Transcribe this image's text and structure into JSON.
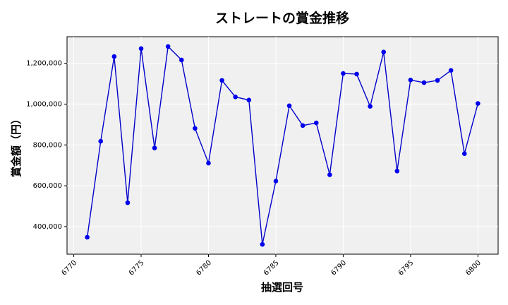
{
  "chart_data": {
    "type": "line",
    "title": "ストレートの賞金推移",
    "xlabel": "抽選回号",
    "ylabel": "賞金額（円）",
    "xlim": [
      6769.5,
      6801.5
    ],
    "ylim": [
      265000,
      1330000
    ],
    "x_ticks": [
      6770,
      6775,
      6780,
      6785,
      6790,
      6795,
      6800
    ],
    "x_tick_labels": [
      "6770",
      "6775",
      "6780",
      "6785",
      "6790",
      "6795",
      "6800"
    ],
    "y_ticks": [
      400000,
      600000,
      800000,
      1000000,
      1200000
    ],
    "y_tick_labels": [
      "400,000",
      "600,000",
      "800,000",
      "1,000,000",
      "1,200,000"
    ],
    "grid": true,
    "background": "#f0f0f0",
    "line_color": "#0000cc",
    "marker_color": "#0000ee",
    "series": [
      {
        "x": [
          6771,
          6772,
          6773,
          6774,
          6775,
          6776,
          6777,
          6778,
          6779,
          6780,
          6781,
          6782,
          6783,
          6784,
          6785,
          6786,
          6787,
          6788,
          6789,
          6790,
          6791,
          6792,
          6793,
          6794,
          6795,
          6796,
          6797,
          6798,
          6799,
          6800
        ],
        "values": [
          348000,
          818000,
          1233000,
          517000,
          1272000,
          785000,
          1282000,
          1216000,
          881000,
          711000,
          1116000,
          1035000,
          1020000,
          313000,
          623000,
          992000,
          895000,
          908000,
          654000,
          1150000,
          1147000,
          989000,
          1255000,
          672000,
          1118000,
          1105000,
          1116000,
          1165000,
          757000,
          1003000
        ]
      }
    ]
  }
}
